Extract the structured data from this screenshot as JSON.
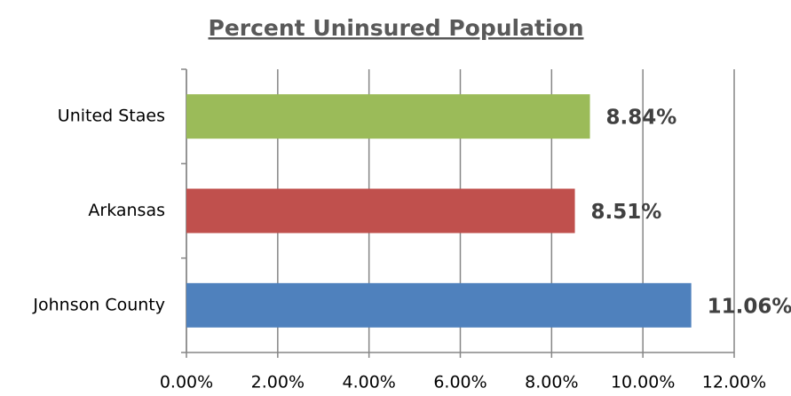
{
  "chart_data": {
    "type": "bar",
    "orientation": "horizontal",
    "title": "Percent Uninsured Population",
    "categories": [
      "United Staes",
      "Arkansas",
      "Johnson County"
    ],
    "values": [
      8.84,
      8.51,
      11.06
    ],
    "value_labels": [
      "8.84%",
      "8.51%",
      "11.06%"
    ],
    "colors": [
      "#9bbb59",
      "#c0504d",
      "#4f81bd"
    ],
    "xlim": [
      0,
      12
    ],
    "xticks": [
      {
        "value": 0,
        "label": "0.00%"
      },
      {
        "value": 2,
        "label": "2.00%"
      },
      {
        "value": 4,
        "label": "4.00%"
      },
      {
        "value": 6,
        "label": "6.00%"
      },
      {
        "value": 8,
        "label": "8.00%"
      },
      {
        "value": 10,
        "label": "10.00%"
      },
      {
        "value": 12,
        "label": "12.00%"
      }
    ],
    "grid": true
  }
}
